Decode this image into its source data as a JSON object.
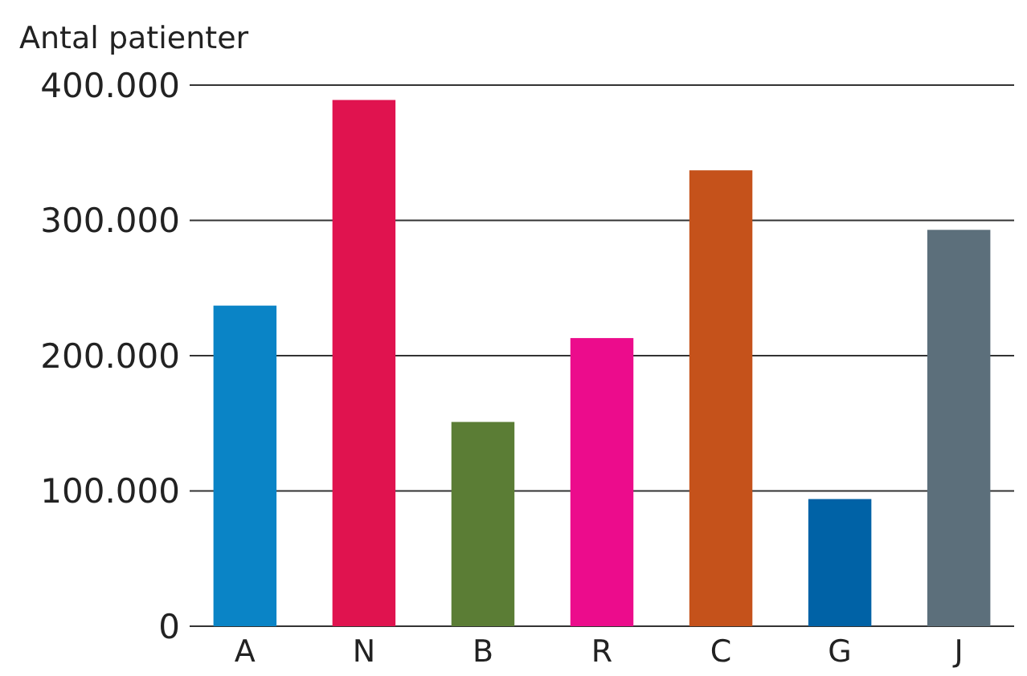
{
  "chart_data": {
    "type": "bar",
    "ylabel": "Antal patienter",
    "categories": [
      "A",
      "N",
      "B",
      "R",
      "C",
      "G",
      "J"
    ],
    "values": [
      237000,
      389000,
      151000,
      213000,
      337000,
      94000,
      293000
    ],
    "colors": [
      "#0a84c6",
      "#e0134f",
      "#5b7d35",
      "#ec0c8c",
      "#c5521b",
      "#0062a6",
      "#5c6f7b"
    ],
    "ylim": [
      0,
      400000
    ],
    "yticks": [
      {
        "value": 0,
        "label": "0"
      },
      {
        "value": 100000,
        "label": "100.000"
      },
      {
        "value": 200000,
        "label": "200.000"
      },
      {
        "value": 300000,
        "label": "300.000"
      },
      {
        "value": 400000,
        "label": "400.000"
      }
    ],
    "grid": "y"
  }
}
